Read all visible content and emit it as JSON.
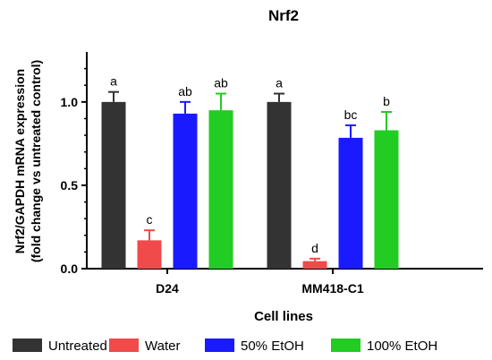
{
  "chart_data": {
    "type": "bar",
    "title": "Nrf2",
    "xlabel": "Cell lines",
    "ylabel_line1": "Nrf2/GAPDH mRNA expression",
    "ylabel_line2": "(fold change vs untreated control)",
    "ylim": [
      0,
      1.3
    ],
    "yticks": [
      "0.0",
      "0.5",
      "1.0"
    ],
    "ytick_values": [
      0,
      0.5,
      1.0
    ],
    "grid": false,
    "legend_position": "bottom",
    "categories": [
      "D24",
      "MM418-C1"
    ],
    "series": [
      {
        "name": "Untreated",
        "color": "#333333",
        "values": [
          1.0,
          1.0
        ],
        "errors": [
          0.06,
          0.05
        ],
        "letters": [
          "a",
          "a"
        ]
      },
      {
        "name": "Water",
        "color": "#f04a4a",
        "values": [
          0.17,
          0.045
        ],
        "errors": [
          0.06,
          0.015
        ],
        "letters": [
          "c",
          "d"
        ]
      },
      {
        "name": "50% EtOH",
        "color": "#1a1aff",
        "values": [
          0.93,
          0.785
        ],
        "errors": [
          0.07,
          0.075
        ],
        "letters": [
          "ab",
          "bc"
        ]
      },
      {
        "name": "100% EtOH",
        "color": "#22cc22",
        "values": [
          0.95,
          0.83
        ],
        "errors": [
          0.1,
          0.11
        ],
        "letters": [
          "ab",
          "b"
        ]
      }
    ]
  }
}
